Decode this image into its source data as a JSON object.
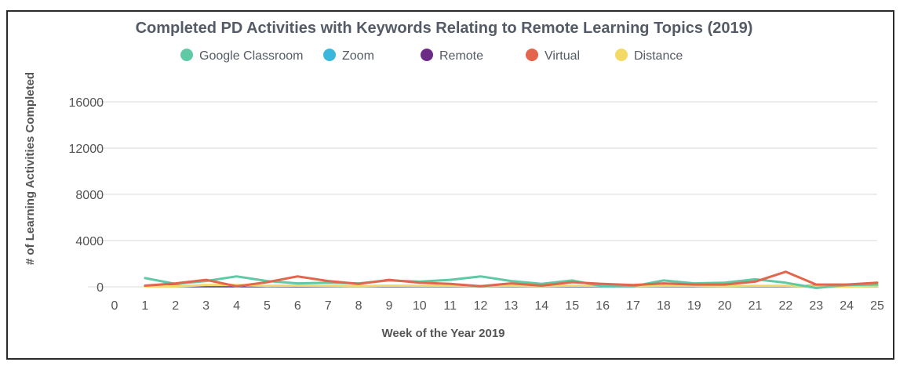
{
  "chart_data": {
    "type": "line",
    "title": "Completed PD Activities with Keywords Relating to Remote Learning Topics  (2019)",
    "xlabel": "Week of the Year 2019",
    "ylabel": "# of Learning Activities Completed",
    "xlim": [
      0,
      25
    ],
    "ylim": [
      0,
      16000
    ],
    "x_ticks": [
      0,
      1,
      2,
      3,
      4,
      5,
      6,
      7,
      8,
      9,
      10,
      11,
      12,
      13,
      14,
      15,
      16,
      17,
      18,
      19,
      20,
      21,
      22,
      23,
      24,
      25
    ],
    "y_ticks": [
      0,
      4000,
      8000,
      12000,
      16000
    ],
    "grid": "horizontal",
    "legend_position": "top",
    "x": [
      1,
      2,
      3,
      4,
      5,
      6,
      7,
      8,
      9,
      10,
      11,
      12,
      13,
      14,
      15,
      16,
      17,
      18,
      19,
      20,
      21,
      22,
      23,
      24,
      25
    ],
    "series": [
      {
        "name": "Google Classroom",
        "color": "#5fc9a5",
        "values": [
          750,
          250,
          500,
          900,
          500,
          300,
          350,
          300,
          550,
          450,
          600,
          900,
          500,
          250,
          550,
          50,
          50,
          550,
          300,
          350,
          650,
          350,
          -100,
          150,
          200
        ]
      },
      {
        "name": "Zoom",
        "color": "#3ab8dc",
        "values": [
          40,
          40,
          40,
          40,
          40,
          40,
          40,
          40,
          40,
          40,
          40,
          40,
          40,
          40,
          40,
          40,
          40,
          40,
          40,
          40,
          40,
          40,
          40,
          40,
          40
        ]
      },
      {
        "name": "Remote",
        "color": "#6a2c86",
        "values": [
          60,
          60,
          60,
          60,
          60,
          60,
          60,
          60,
          60,
          60,
          60,
          60,
          60,
          60,
          60,
          60,
          60,
          60,
          60,
          60,
          60,
          60,
          60,
          60,
          60
        ]
      },
      {
        "name": "Virtual",
        "color": "#e2654c",
        "values": [
          100,
          300,
          600,
          50,
          400,
          900,
          500,
          250,
          600,
          350,
          250,
          50,
          300,
          100,
          400,
          250,
          150,
          300,
          200,
          200,
          450,
          1300,
          200,
          200,
          350
        ]
      },
      {
        "name": "Distance",
        "color": "#f3d966",
        "values": [
          30,
          40,
          150,
          150,
          80,
          100,
          80,
          60,
          100,
          80,
          80,
          60,
          80,
          60,
          100,
          80,
          60,
          80,
          80,
          60,
          80,
          80,
          20,
          20,
          60
        ]
      }
    ]
  }
}
